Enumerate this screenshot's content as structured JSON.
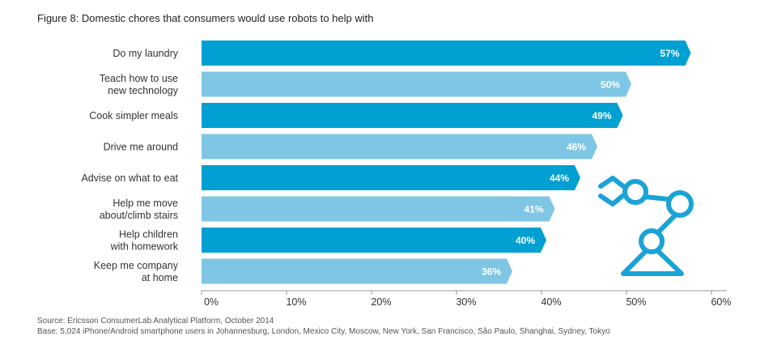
{
  "title": "Figure 8: Domestic chores that consumers would use robots to help with",
  "footer": {
    "source": "Source: Ericsson ConsumerLab Analytical Platform, October 2014",
    "base": "Base: 5,024 iPhone/Android smartphone users in Johannesburg, London, Mexico City, Moscow, New York, San Francisco, São Paulo, Shanghai, Sydney, Tokyo"
  },
  "illustration": {
    "icon": "robot-arm-icon"
  },
  "colors": {
    "dark_bar": "#00a0d2",
    "light_bar": "#7fc6e4",
    "axis": "#9a9a9a",
    "label_text": "#333333",
    "bar_text": "#ffffff",
    "icon": "#1aa3d6"
  },
  "chart_data": {
    "type": "bar",
    "orientation": "horizontal",
    "categories": [
      [
        "Do my laundry"
      ],
      [
        "Teach how to use",
        "new technology"
      ],
      [
        "Cook simpler meals"
      ],
      [
        "Drive me around"
      ],
      [
        "Advise on what to eat"
      ],
      [
        "Help me move",
        "about/climb stairs"
      ],
      [
        "Help children",
        "with homework"
      ],
      [
        "Keep me company",
        "at home"
      ]
    ],
    "values": [
      57,
      50,
      49,
      46,
      44,
      41,
      40,
      36
    ],
    "value_labels": [
      "57%",
      "50%",
      "49%",
      "46%",
      "44%",
      "41%",
      "40%",
      "36%"
    ],
    "xlim": [
      0,
      60
    ],
    "xticks": [
      0,
      10,
      20,
      30,
      40,
      50,
      60
    ],
    "xtick_labels": [
      "0%",
      "10%",
      "20%",
      "30%",
      "40%",
      "50%",
      "60%"
    ],
    "grid": false,
    "legend": "none"
  }
}
